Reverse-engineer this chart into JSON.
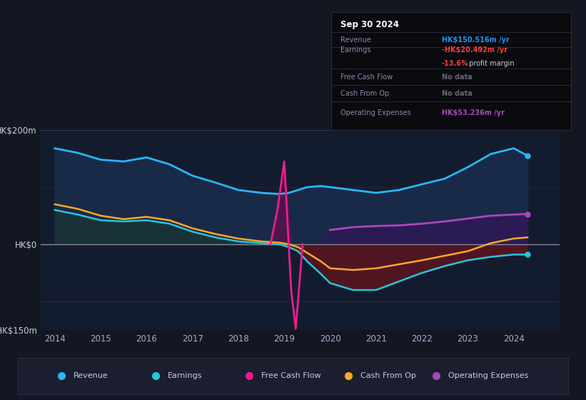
{
  "background_color": "#131722",
  "plot_bg_color": "#131c2e",
  "title": "Sep 30 2024",
  "years": [
    2014.0,
    2014.5,
    2015.0,
    2015.5,
    2016.0,
    2016.5,
    2017.0,
    2017.5,
    2018.0,
    2018.5,
    2018.9,
    2019.1,
    2019.3,
    2019.5,
    2019.8,
    2020.0,
    2020.5,
    2021.0,
    2021.5,
    2022.0,
    2022.5,
    2023.0,
    2023.5,
    2024.0,
    2024.3
  ],
  "revenue": [
    168,
    160,
    148,
    145,
    152,
    140,
    120,
    108,
    95,
    90,
    88,
    90,
    95,
    100,
    102,
    100,
    95,
    90,
    95,
    105,
    115,
    135,
    158,
    168,
    155
  ],
  "earnings": [
    60,
    52,
    42,
    40,
    42,
    36,
    22,
    12,
    5,
    2,
    0,
    -5,
    -12,
    -30,
    -52,
    -68,
    -80,
    -80,
    -65,
    -50,
    -38,
    -28,
    -22,
    -18,
    -18
  ],
  "cash_from_op": [
    70,
    62,
    50,
    44,
    48,
    42,
    28,
    18,
    10,
    5,
    3,
    0,
    -5,
    -15,
    -30,
    -42,
    -45,
    -42,
    -35,
    -28,
    -20,
    -12,
    2,
    10,
    12
  ],
  "operating_expenses": [
    null,
    null,
    null,
    null,
    null,
    null,
    null,
    null,
    null,
    null,
    null,
    null,
    null,
    null,
    null,
    25,
    30,
    32,
    33,
    36,
    40,
    45,
    50,
    52,
    53
  ],
  "fcf_years": [
    2018.7,
    2018.85,
    2019.0,
    2019.15,
    2019.25,
    2019.4
  ],
  "fcf_vals": [
    0,
    60,
    145,
    -80,
    -148,
    0
  ],
  "revenue_color": "#29b6f6",
  "earnings_color": "#26c6da",
  "free_cash_flow_color": "#e91e8c",
  "cash_from_op_color": "#ffa726",
  "operating_expenses_color": "#ab47bc",
  "revenue_fill_color": "#1a3050",
  "earnings_pos_fill": "#1a3a30",
  "earnings_neg_fill": "#5a1a25",
  "op_exp_fill": "#3a1a5a",
  "ylim": [
    -150,
    200
  ],
  "legend_items": [
    {
      "label": "Revenue",
      "color": "#29b6f6"
    },
    {
      "label": "Earnings",
      "color": "#26c6da"
    },
    {
      "label": "Free Cash Flow",
      "color": "#e91e8c"
    },
    {
      "label": "Cash From Op",
      "color": "#ffa726"
    },
    {
      "label": "Operating Expenses",
      "color": "#ab47bc"
    }
  ],
  "info_rows": [
    {
      "label": "Revenue",
      "value": "HK$150.516m /yr",
      "val_color": "#2196f3"
    },
    {
      "label": "Earnings",
      "value": "-HK$20.492m /yr",
      "val_color": "#f44336",
      "sub": "-13.6% profit margin",
      "sub_color": "#f44336"
    },
    {
      "label": "Free Cash Flow",
      "value": "No data",
      "val_color": "#666677"
    },
    {
      "label": "Cash From Op",
      "value": "No data",
      "val_color": "#666677"
    },
    {
      "label": "Operating Expenses",
      "value": "HK$53.236m /yr",
      "val_color": "#ab47bc"
    }
  ]
}
